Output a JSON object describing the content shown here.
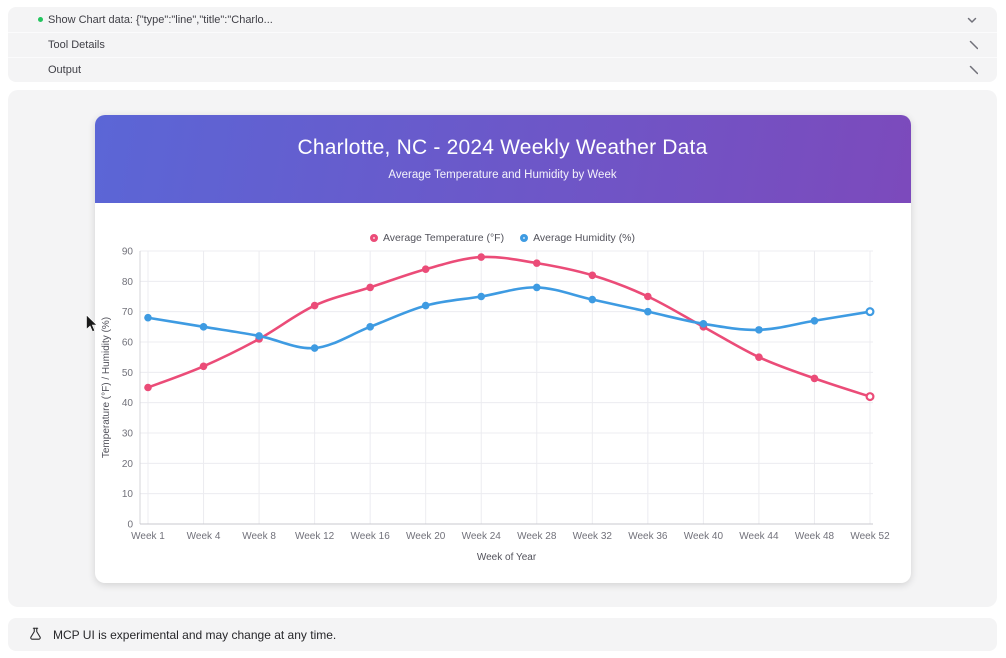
{
  "accordion": {
    "rows": [
      {
        "label": "Show Chart data: {\"type\":\"line\",\"title\":\"Charlo...",
        "chevron": "down",
        "bullet_color": "#22c55e"
      },
      {
        "label": "Tool Details",
        "chevron": "right"
      },
      {
        "label": "Output",
        "chevron": "right"
      }
    ]
  },
  "chart_card": {
    "title": "Charlotte, NC - 2024 Weekly Weather Data",
    "subtitle": "Average Temperature and Humidity by Week",
    "header_gradient_start": "#5B66D6",
    "header_gradient_end": "#7C4ABC"
  },
  "chart_data": {
    "type": "line",
    "title": "Charlotte, NC - 2024 Weekly Weather Data",
    "subtitle": "Average Temperature and Humidity by Week",
    "categories": [
      "Week 1",
      "Week 4",
      "Week 8",
      "Week 12",
      "Week 16",
      "Week 20",
      "Week 24",
      "Week 28",
      "Week 32",
      "Week 36",
      "Week 40",
      "Week 44",
      "Week 48",
      "Week 52"
    ],
    "series": [
      {
        "name": "Average Temperature (°F)",
        "color": "#EB4C78",
        "values": [
          45,
          52,
          61,
          72,
          78,
          84,
          88,
          86,
          82,
          75,
          65,
          55,
          48,
          42
        ]
      },
      {
        "name": "Average Humidity (%)",
        "color": "#3E9BE2",
        "values": [
          68,
          65,
          62,
          58,
          65,
          72,
          75,
          78,
          74,
          70,
          66,
          64,
          67,
          70
        ]
      }
    ],
    "xlabel": "Week of Year",
    "ylabel": "Temperature (°F) / Humidity (%)",
    "ylim": [
      0,
      90
    ],
    "ytick_step": 10,
    "grid": true,
    "legend_position": "top",
    "curve": "smooth"
  },
  "footer": {
    "text": "MCP UI is experimental and may change at any time."
  }
}
